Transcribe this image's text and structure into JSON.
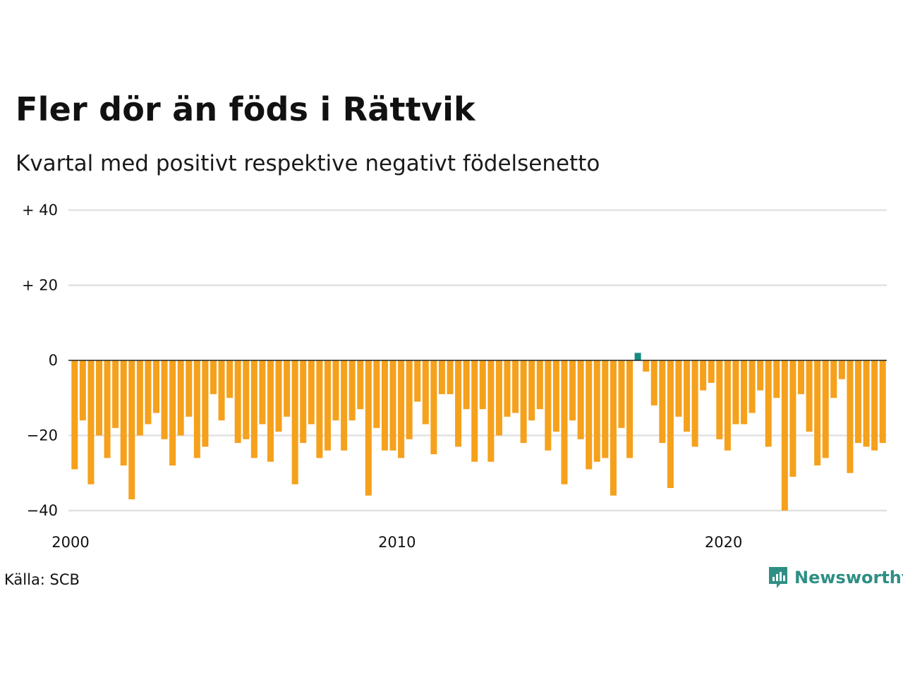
{
  "title": "Fler dör än föds i Rättvik",
  "subtitle": "Kvartal med positivt respektive negativt födelsenetto",
  "source": "Källa: SCB",
  "brand": {
    "name": "Newsworthy",
    "color": "#2f8f84"
  },
  "colors": {
    "negative": "#f5a11c",
    "positive": "#178a80",
    "grid": "#e2e2e2",
    "zero_line": "#222222"
  },
  "chart_data": {
    "type": "bar",
    "x_start": "2000 Q1",
    "x_end": "2024 Q4",
    "xticks": [
      {
        "label": "2000",
        "index": 0
      },
      {
        "label": "2010",
        "index": 40
      },
      {
        "label": "2020",
        "index": 80
      }
    ],
    "yticks": [
      {
        "label": "+ 40",
        "value": 40
      },
      {
        "label": "+ 20",
        "value": 20
      },
      {
        "label": "0",
        "value": 0
      },
      {
        "label": "−20",
        "value": -20
      },
      {
        "label": "−40",
        "value": -40
      }
    ],
    "ylim": [
      -40,
      40
    ],
    "grid": true,
    "values": [
      -29,
      -16,
      -33,
      -20,
      -26,
      -18,
      -28,
      -37,
      -20,
      -17,
      -14,
      -21,
      -28,
      -20,
      -15,
      -26,
      -23,
      -9,
      -16,
      -10,
      -22,
      -21,
      -26,
      -17,
      -27,
      -19,
      -15,
      -33,
      -22,
      -17,
      -26,
      -24,
      -16,
      -24,
      -16,
      -13,
      -36,
      -18,
      -24,
      -24,
      -26,
      -21,
      -11,
      -17,
      -25,
      -9,
      -9,
      -23,
      -13,
      -27,
      -13,
      -27,
      -20,
      -15,
      -14,
      -22,
      -16,
      -13,
      -24,
      -19,
      -33,
      -16,
      -21,
      -29,
      -27,
      -26,
      -36,
      -18,
      -26,
      2,
      -3,
      -12,
      -22,
      -34,
      -15,
      -19,
      -23,
      -8,
      -6,
      -21,
      -24,
      -17,
      -17,
      -14,
      -8,
      -23,
      -10,
      -40,
      -31,
      -9,
      -19,
      -28,
      -26,
      -10,
      -5,
      -30,
      -22,
      -23,
      -24,
      -22
    ]
  }
}
